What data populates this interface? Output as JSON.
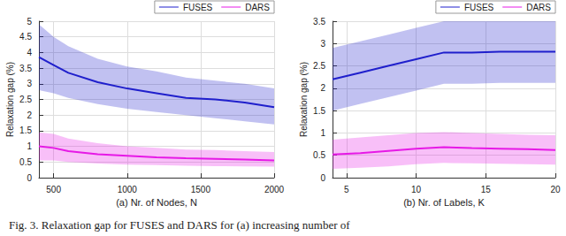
{
  "chart_data": [
    {
      "type": "line",
      "xlabel": "(a) Nr. of Nodes, N",
      "ylabel": "Relaxation gap (%)",
      "x": [
        400,
        500,
        600,
        800,
        1000,
        1200,
        1400,
        1600,
        1800,
        2000
      ],
      "xlim": [
        400,
        2000
      ],
      "xticks": [
        500,
        1000,
        1500,
        2000
      ],
      "ylim": [
        0,
        5
      ],
      "yticks": [
        0,
        0.5,
        1,
        1.5,
        2,
        2.5,
        3,
        3.5,
        4,
        4.5,
        5
      ],
      "grid": true,
      "legend": "upper right",
      "series": [
        {
          "name": "FUSES",
          "color": "#1f1fcc",
          "values": [
            3.85,
            3.6,
            3.35,
            3.05,
            2.85,
            2.7,
            2.55,
            2.5,
            2.4,
            2.25
          ],
          "lower": [
            2.8,
            2.7,
            2.55,
            2.35,
            2.2,
            2.1,
            2.0,
            1.9,
            1.8,
            1.7
          ],
          "upper": [
            4.9,
            4.5,
            4.2,
            3.8,
            3.55,
            3.4,
            3.2,
            3.1,
            3.0,
            2.85
          ]
        },
        {
          "name": "DARS",
          "color": "#e619e6",
          "values": [
            1.0,
            0.95,
            0.85,
            0.75,
            0.7,
            0.65,
            0.62,
            0.6,
            0.58,
            0.55
          ],
          "lower": [
            0.55,
            0.55,
            0.5,
            0.45,
            0.42,
            0.4,
            0.38,
            0.37,
            0.36,
            0.35
          ],
          "upper": [
            1.45,
            1.4,
            1.25,
            1.1,
            1.0,
            0.95,
            0.9,
            0.88,
            0.85,
            0.82
          ]
        }
      ]
    },
    {
      "type": "line",
      "xlabel": "(b) Nr. of Labels, K",
      "ylabel": "Relaxation gap (%)",
      "x": [
        4,
        6,
        8,
        10,
        12,
        14,
        16,
        18,
        20
      ],
      "xlim": [
        4,
        20
      ],
      "xticks": [
        5,
        10,
        15,
        20
      ],
      "ylim": [
        0,
        3.5
      ],
      "yticks": [
        0,
        0.5,
        1,
        1.5,
        2,
        2.5,
        3,
        3.5
      ],
      "grid": true,
      "legend": "upper right",
      "series": [
        {
          "name": "FUSES",
          "color": "#1f1fcc",
          "values": [
            2.2,
            2.35,
            2.5,
            2.65,
            2.8,
            2.8,
            2.82,
            2.82,
            2.82
          ],
          "lower": [
            1.5,
            1.65,
            1.8,
            1.95,
            2.1,
            2.1,
            2.12,
            2.12,
            2.12
          ],
          "upper": [
            2.9,
            3.05,
            3.2,
            3.35,
            3.5,
            3.5,
            3.5,
            3.5,
            3.5
          ]
        },
        {
          "name": "DARS",
          "color": "#e619e6",
          "values": [
            0.52,
            0.55,
            0.6,
            0.65,
            0.68,
            0.66,
            0.65,
            0.64,
            0.62
          ],
          "lower": [
            0.2,
            0.22,
            0.25,
            0.3,
            0.33,
            0.32,
            0.31,
            0.3,
            0.29
          ],
          "upper": [
            0.85,
            0.9,
            0.95,
            1.0,
            1.02,
            1.0,
            0.98,
            0.96,
            0.95
          ]
        }
      ]
    }
  ],
  "caption": "Fig. 3.  Relaxation gap for FUSES and DARS for (a) increasing number of"
}
